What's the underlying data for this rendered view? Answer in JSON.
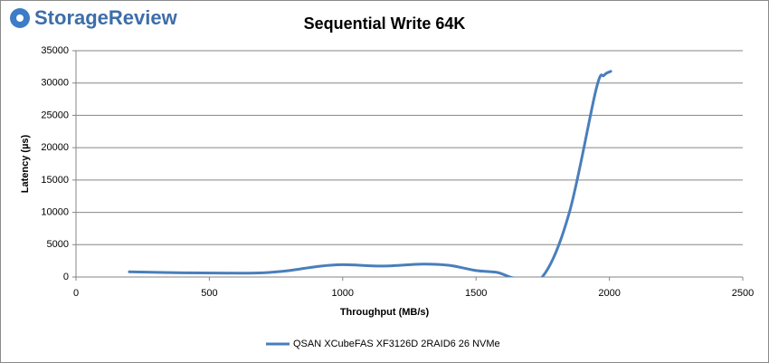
{
  "logo": "StorageReview",
  "chart_data": {
    "type": "line",
    "title": "Sequential Write 64K",
    "x_label": "Throughput (MB/s)",
    "y_label": "Latency (µs)",
    "x": [
      200,
      400,
      600,
      700,
      800,
      900,
      1000,
      1150,
      1300,
      1400,
      1500,
      1580,
      1650,
      1750,
      1850,
      1950,
      1980,
      2005
    ],
    "series": [
      {
        "name": "QSAN XCubeFAS XF3126D 2RAID6 26 NVMe",
        "color": "#4a7ebb",
        "values": [
          800,
          650,
          600,
          650,
          1000,
          1600,
          1900,
          1700,
          2000,
          1800,
          1000,
          700,
          -200,
          100,
          10000,
          29000,
          31200,
          31800
        ]
      }
    ],
    "xlim": [
      0,
      2500
    ],
    "xticks": [
      0,
      500,
      1000,
      1500,
      2000,
      2500
    ],
    "ylim": [
      0,
      35000
    ],
    "yticks": [
      0,
      5000,
      10000,
      15000,
      20000,
      25000,
      30000,
      35000
    ],
    "grid": true,
    "legend": "bottom"
  }
}
